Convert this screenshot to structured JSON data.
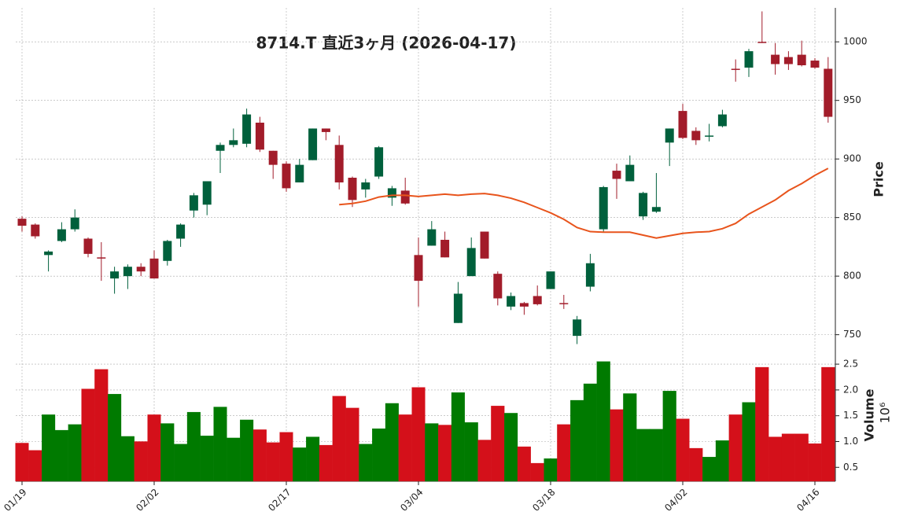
{
  "chart_data": [
    {
      "type": "candlestick",
      "title": "8714.T 直近3ヶ月 (2026-04-17)",
      "ylabel": "Price",
      "categories": [
        "01/19",
        null,
        null,
        null,
        null,
        null,
        null,
        null,
        null,
        null,
        "02/02",
        null,
        null,
        null,
        null,
        null,
        null,
        null,
        null,
        null,
        "02/17",
        null,
        null,
        null,
        null,
        null,
        null,
        null,
        null,
        null,
        "03/04",
        null,
        null,
        null,
        null,
        null,
        null,
        null,
        null,
        null,
        "03/18",
        null,
        null,
        null,
        null,
        null,
        null,
        null,
        null,
        null,
        "04/02",
        null,
        null,
        null,
        null,
        null,
        null,
        null,
        null,
        null,
        "04/16",
        null
      ],
      "open": [
        849,
        844,
        818,
        830,
        840,
        832,
        816,
        798,
        800,
        808,
        815,
        813,
        832,
        856,
        861,
        907,
        912,
        913,
        931,
        907,
        896,
        880,
        899,
        926,
        912,
        884,
        874,
        885,
        867,
        873,
        818,
        826,
        831,
        760,
        800,
        838,
        802,
        774,
        777,
        783,
        789,
        777,
        749,
        791,
        840,
        890,
        881,
        851,
        855,
        914,
        941,
        924,
        919,
        928,
        977,
        978,
        1000,
        989,
        987,
        989,
        984,
        977
      ],
      "high": [
        851,
        845,
        822,
        846,
        857,
        833,
        829,
        808,
        810,
        811,
        822,
        831,
        845,
        871,
        881,
        914,
        926,
        943,
        936,
        907,
        898,
        900,
        926,
        926,
        920,
        885,
        883,
        911,
        877,
        884,
        833,
        847,
        838,
        795,
        833,
        838,
        804,
        786,
        778,
        792,
        804,
        784,
        766,
        819,
        877,
        896,
        903,
        872,
        888,
        926,
        947,
        927,
        930,
        942,
        985,
        994,
        1026,
        999,
        992,
        1001,
        986,
        987
      ],
      "low": [
        838,
        832,
        804,
        829,
        838,
        816,
        796,
        785,
        789,
        800,
        798,
        809,
        825,
        850,
        852,
        888,
        910,
        910,
        906,
        883,
        872,
        880,
        899,
        916,
        874,
        859,
        867,
        883,
        860,
        861,
        774,
        826,
        816,
        760,
        800,
        815,
        775,
        771,
        767,
        775,
        789,
        772,
        742,
        787,
        838,
        866,
        881,
        848,
        854,
        894,
        917,
        912,
        915,
        927,
        966,
        970,
        999,
        972,
        976,
        979,
        977,
        931
      ],
      "close": [
        843,
        834,
        821,
        840,
        850,
        819,
        815,
        804,
        808,
        804,
        798,
        830,
        844,
        869,
        881,
        912,
        916,
        938,
        908,
        895,
        875,
        895,
        926,
        923,
        880,
        865,
        880,
        910,
        875,
        862,
        796,
        840,
        816,
        785,
        824,
        815,
        781,
        783,
        774,
        776,
        804,
        776,
        763,
        811,
        876,
        883,
        895,
        871,
        859,
        926,
        918,
        916,
        920,
        938,
        976,
        992,
        999,
        981,
        981,
        980,
        978,
        936
      ],
      "ma": [
        null,
        null,
        null,
        null,
        null,
        null,
        null,
        null,
        null,
        null,
        null,
        null,
        null,
        null,
        null,
        null,
        null,
        null,
        null,
        null,
        null,
        null,
        null,
        null,
        861,
        862,
        864,
        867.5,
        869,
        869,
        868,
        869,
        870,
        869,
        870,
        870.5,
        869,
        866.5,
        863,
        858.5,
        854,
        848.5,
        841.5,
        838,
        837.5,
        837.5,
        837.5,
        835,
        832.5,
        834.5,
        836.5,
        837.5,
        838,
        840.5,
        845,
        853,
        859,
        865,
        873,
        879,
        886,
        892
      ],
      "up_color": "#00603c",
      "down_color": "#a21c2a",
      "ma_color": "#e8541c",
      "ylim": [
        737,
        1029
      ],
      "yticks": [
        750,
        800,
        850,
        900,
        950,
        1000
      ],
      "grid": true
    },
    {
      "type": "bar",
      "ylabel": "Volume",
      "scale_label": "10⁶",
      "values": [
        0.97,
        0.83,
        1.52,
        1.22,
        1.33,
        2.02,
        2.4,
        1.92,
        1.1,
        1.0,
        1.52,
        1.35,
        0.95,
        1.57,
        1.11,
        1.67,
        1.07,
        1.42,
        1.23,
        0.98,
        1.18,
        0.88,
        1.09,
        0.93,
        1.88,
        1.65,
        0.95,
        1.25,
        1.74,
        1.52,
        2.05,
        1.35,
        1.32,
        1.95,
        1.37,
        1.03,
        1.69,
        1.55,
        0.9,
        0.58,
        0.67,
        1.33,
        1.8,
        2.12,
        2.55,
        1.62,
        1.93,
        1.24,
        1.24,
        1.98,
        1.44,
        0.87,
        0.7,
        1.02,
        1.52,
        1.76,
        2.44,
        1.09,
        1.15,
        1.15,
        0.96,
        2.44
      ],
      "up_color": "#007a00",
      "down_color": "#d4101a",
      "ylim": [
        0.23,
        2.73
      ],
      "yticks": [
        0.5,
        {
          "value": 1.0,
          "label": "1.0"
        },
        1.5,
        {
          "value": 2.0,
          "label": "2.0"
        },
        2.5
      ],
      "grid": true
    }
  ]
}
